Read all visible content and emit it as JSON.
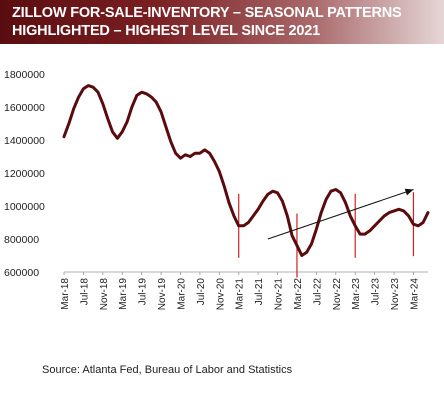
{
  "header": {
    "title": "ZILLOW FOR-SALE-INVENTORY – SEASONAL PATTERNS HIGHLIGHTED – HIGHEST LEVEL SINCE 2021"
  },
  "source": "Source: Atlanta Fed, Bureau of Labor and Statistics",
  "colors": {
    "line": "#5a0b0e",
    "markers": "#cc2222",
    "trend_arrow": "#111111",
    "banner_start": "#5a0d10"
  },
  "chart_data": {
    "type": "line",
    "title": "",
    "xlabel": "",
    "ylabel": "",
    "ylim": [
      600000,
      1800000
    ],
    "yticks": [
      600000,
      800000,
      1000000,
      1200000,
      1400000,
      1600000,
      1800000
    ],
    "ytick_labels": [
      "600000",
      "800000",
      "1000000",
      "1200000",
      "1400000",
      "1600000",
      "1800000"
    ],
    "grid": false,
    "legend": "none",
    "xtick_labels": [
      "Mar-18",
      "Jul-18",
      "Nov-18",
      "Mar-19",
      "Jul-19",
      "Nov-19",
      "Mar-20",
      "Jul-20",
      "Nov-20",
      "Mar-21",
      "Jul-21",
      "Nov-21",
      "Mar-22",
      "Jul-22",
      "Nov-22",
      "Mar-23",
      "Jul-23",
      "Nov-23",
      "Mar-24"
    ],
    "series": [
      {
        "start": "2018-03",
        "values": [
          1420000,
          1500000,
          1590000,
          1660000,
          1710000,
          1730000,
          1720000,
          1690000,
          1620000,
          1530000,
          1450000,
          1410000,
          1450000,
          1510000,
          1600000,
          1670000,
          1690000,
          1680000,
          1660000,
          1630000,
          1570000,
          1480000,
          1390000,
          1320000,
          1290000,
          1310000,
          1300000,
          1320000,
          1320000,
          1340000,
          1320000,
          1270000,
          1210000,
          1120000,
          1020000,
          940000,
          880000,
          880000,
          900000,
          940000,
          980000,
          1030000,
          1070000,
          1090000,
          1080000,
          1030000,
          940000,
          820000,
          760000,
          700000,
          720000,
          770000,
          860000,
          960000,
          1040000,
          1090000,
          1100000,
          1080000,
          1020000,
          940000,
          880000,
          830000,
          830000,
          850000,
          880000,
          910000,
          940000,
          960000,
          970000,
          980000,
          970000,
          940000,
          890000,
          880000,
          900000,
          960000
        ]
      }
    ],
    "marker_months": [
      "2021-03",
      "2022-03",
      "2023-03",
      "2024-03"
    ],
    "trend_arrow": {
      "from": [
        "2021-09",
        800000
      ],
      "to": [
        "2024-03",
        1100000
      ]
    }
  }
}
